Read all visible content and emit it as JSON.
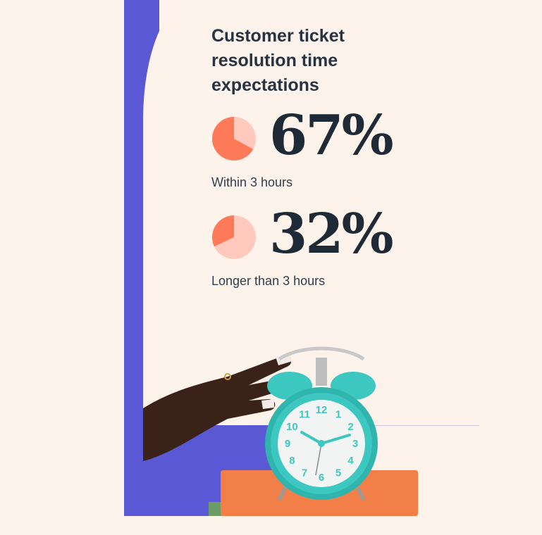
{
  "title": "Customer ticket resolution time expectations",
  "stats": [
    {
      "value": "67%",
      "label": "Within 3 hours",
      "fraction": 0.67
    },
    {
      "value": "32%",
      "label": "Longer than 3 hours",
      "fraction": 0.32
    }
  ],
  "colors": {
    "background": "#fdf3ea",
    "accent_purple": "#5a58d4",
    "pie_primary": "#ff7a59",
    "pie_secondary": "#ffcabd",
    "clock_teal": "#3cc7c0",
    "book_orange": "#f27f48",
    "text_dark": "#253342"
  },
  "illustration": {
    "icons": [
      "hand-icon",
      "alarm-clock-icon",
      "book-icon"
    ],
    "clock_numbers": [
      "12",
      "1",
      "2",
      "3",
      "4",
      "5",
      "6",
      "7",
      "8",
      "9",
      "10",
      "11"
    ]
  }
}
